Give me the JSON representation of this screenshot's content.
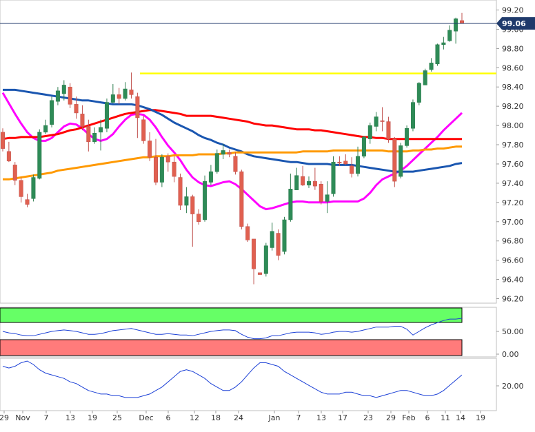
{
  "chart_data": {
    "type": "candlestick",
    "title": "",
    "main_panel": {
      "y_ticks": [
        "99.20",
        "99.00",
        "98.80",
        "98.60",
        "98.40",
        "98.20",
        "98.00",
        "97.80",
        "97.60",
        "97.40",
        "97.20",
        "97.00",
        "96.80",
        "96.60",
        "96.40",
        "96.20"
      ],
      "ylim": [
        96.2,
        99.2
      ],
      "last_price": "99.06",
      "horizontal_level": 98.54,
      "candles": [
        [
          97.93,
          97.97,
          97.73,
          97.76
        ],
        [
          97.73,
          97.83,
          97.62,
          97.63
        ],
        [
          97.59,
          97.62,
          97.38,
          97.43
        ],
        [
          97.43,
          97.46,
          97.2,
          97.26
        ],
        [
          97.23,
          97.29,
          97.15,
          97.18
        ],
        [
          97.24,
          97.49,
          97.21,
          97.46
        ],
        [
          97.45,
          97.96,
          97.44,
          97.93
        ],
        [
          97.93,
          98.06,
          97.91,
          98.0
        ],
        [
          98.01,
          98.3,
          97.98,
          98.26
        ],
        [
          98.25,
          98.4,
          98.21,
          98.36
        ],
        [
          98.33,
          98.47,
          98.26,
          98.42
        ],
        [
          98.4,
          98.44,
          98.18,
          98.22
        ],
        [
          98.22,
          98.3,
          98.07,
          98.13
        ],
        [
          98.12,
          98.21,
          97.95,
          97.99
        ],
        [
          97.99,
          98.06,
          97.73,
          97.83
        ],
        [
          97.83,
          97.98,
          97.81,
          97.92
        ],
        [
          97.93,
          98.06,
          97.74,
          97.98
        ],
        [
          97.97,
          98.28,
          97.93,
          98.24
        ],
        [
          98.24,
          98.43,
          98.23,
          98.32
        ],
        [
          98.32,
          98.39,
          98.22,
          98.28
        ],
        [
          98.28,
          98.45,
          98.26,
          98.38
        ],
        [
          98.37,
          98.55,
          98.28,
          98.32
        ],
        [
          98.3,
          98.34,
          97.87,
          98.08
        ],
        [
          98.06,
          98.1,
          97.81,
          97.84
        ],
        [
          97.84,
          97.93,
          97.63,
          97.67
        ],
        [
          97.67,
          97.86,
          97.38,
          97.41
        ],
        [
          97.41,
          97.7,
          97.36,
          97.67
        ],
        [
          97.68,
          97.71,
          97.52,
          97.62
        ],
        [
          97.62,
          97.68,
          97.41,
          97.47
        ],
        [
          97.46,
          97.5,
          97.12,
          97.17
        ],
        [
          97.17,
          97.36,
          97.09,
          97.26
        ],
        [
          97.26,
          97.28,
          96.74,
          97.08
        ],
        [
          97.08,
          97.13,
          96.97,
          97.0
        ],
        [
          97.02,
          97.48,
          97.0,
          97.42
        ],
        [
          97.41,
          97.59,
          97.38,
          97.52
        ],
        [
          97.52,
          97.75,
          97.5,
          97.71
        ],
        [
          97.7,
          97.81,
          97.65,
          97.74
        ],
        [
          97.72,
          97.75,
          97.67,
          97.7
        ],
        [
          97.68,
          97.72,
          97.49,
          97.52
        ],
        [
          97.52,
          97.54,
          96.92,
          96.95
        ],
        [
          96.95,
          96.98,
          96.79,
          96.81
        ],
        [
          96.82,
          96.82,
          96.35,
          96.51
        ],
        [
          96.47,
          96.47,
          96.45,
          96.45
        ],
        [
          96.46,
          96.78,
          96.43,
          96.75
        ],
        [
          96.73,
          96.99,
          96.7,
          96.9
        ],
        [
          96.88,
          96.92,
          96.6,
          96.65
        ],
        [
          96.69,
          97.05,
          96.66,
          97.02
        ],
        [
          97.02,
          97.5,
          97.0,
          97.34
        ],
        [
          97.33,
          97.56,
          97.33,
          97.48
        ],
        [
          97.47,
          97.58,
          97.37,
          97.38
        ],
        [
          97.38,
          97.47,
          97.35,
          97.42
        ],
        [
          97.42,
          97.56,
          97.33,
          97.37
        ],
        [
          97.39,
          97.42,
          97.18,
          97.21
        ],
        [
          97.21,
          97.42,
          97.09,
          97.28
        ],
        [
          97.29,
          97.68,
          97.26,
          97.62
        ],
        [
          97.62,
          97.68,
          97.58,
          97.61
        ],
        [
          97.63,
          97.7,
          97.59,
          97.6
        ],
        [
          97.58,
          97.67,
          97.46,
          97.5
        ],
        [
          97.5,
          97.78,
          97.47,
          97.68
        ],
        [
          97.68,
          97.89,
          97.66,
          97.88
        ],
        [
          97.86,
          98.03,
          97.81,
          98.0
        ],
        [
          97.99,
          98.14,
          97.94,
          98.09
        ],
        [
          98.05,
          98.19,
          97.94,
          98.04
        ],
        [
          98.04,
          98.09,
          97.82,
          97.86
        ],
        [
          97.86,
          97.88,
          97.36,
          97.42
        ],
        [
          97.47,
          97.82,
          97.45,
          97.79
        ],
        [
          97.79,
          98.0,
          97.77,
          97.97
        ],
        [
          97.97,
          98.27,
          97.94,
          98.24
        ],
        [
          98.24,
          98.45,
          98.21,
          98.44
        ],
        [
          98.42,
          98.59,
          98.42,
          98.57
        ],
        [
          98.58,
          98.7,
          98.56,
          98.65
        ],
        [
          98.64,
          98.85,
          98.62,
          98.84
        ],
        [
          98.84,
          98.92,
          98.79,
          98.86
        ],
        [
          98.88,
          99.04,
          98.87,
          98.99
        ],
        [
          98.98,
          99.12,
          98.85,
          99.11
        ],
        [
          99.09,
          99.17,
          99.06,
          99.06
        ]
      ],
      "moving_averages": [
        {
          "color": "#ff00ff",
          "values": [
            98.34,
            98.23,
            98.12,
            98.02,
            97.93,
            97.87,
            97.84,
            97.84,
            97.87,
            97.93,
            97.99,
            98.02,
            98.01,
            97.97,
            97.91,
            97.86,
            97.84,
            97.86,
            97.91,
            97.99,
            98.06,
            98.11,
            98.12,
            98.11,
            98.06,
            97.98,
            97.88,
            97.79,
            97.72,
            97.64,
            97.54,
            97.46,
            97.41,
            97.38,
            97.37,
            97.39,
            97.41,
            97.42,
            97.39,
            97.34,
            97.28,
            97.22,
            97.16,
            97.13,
            97.14,
            97.16,
            97.18,
            97.2,
            97.21,
            97.21,
            97.2,
            97.2,
            97.2,
            97.2,
            97.21,
            97.21,
            97.21,
            97.21,
            97.21,
            97.24,
            97.3,
            97.38,
            97.44,
            97.47,
            97.5,
            97.53,
            97.58,
            97.64,
            97.7,
            97.76,
            97.82,
            97.88,
            97.95,
            98.01,
            98.07,
            98.13
          ]
        },
        {
          "color": "#ff0000",
          "values": [
            97.86,
            97.87,
            97.87,
            97.88,
            97.88,
            97.88,
            97.88,
            97.89,
            97.9,
            97.91,
            97.93,
            97.95,
            97.96,
            97.98,
            98.0,
            98.02,
            98.04,
            98.06,
            98.08,
            98.1,
            98.12,
            98.13,
            98.14,
            98.15,
            98.16,
            98.16,
            98.15,
            98.14,
            98.13,
            98.12,
            98.1,
            98.1,
            98.1,
            98.1,
            98.1,
            98.09,
            98.08,
            98.07,
            98.06,
            98.05,
            98.04,
            98.02,
            98.01,
            98.0,
            98.0,
            97.99,
            97.98,
            97.97,
            97.96,
            97.96,
            97.96,
            97.95,
            97.95,
            97.94,
            97.93,
            97.92,
            97.91,
            97.9,
            97.89,
            97.88,
            97.88,
            97.87,
            97.87,
            97.86,
            97.86,
            97.86,
            97.86,
            97.86,
            97.86,
            97.86,
            97.86,
            97.86,
            97.86,
            97.86,
            97.86,
            97.86
          ]
        },
        {
          "color": "#1a56b0",
          "values": [
            98.37,
            98.37,
            98.37,
            98.36,
            98.35,
            98.34,
            98.33,
            98.32,
            98.31,
            98.3,
            98.29,
            98.28,
            98.27,
            98.26,
            98.26,
            98.25,
            98.24,
            98.23,
            98.22,
            98.22,
            98.22,
            98.22,
            98.21,
            98.19,
            98.17,
            98.14,
            98.11,
            98.07,
            98.03,
            98.0,
            97.97,
            97.94,
            97.9,
            97.87,
            97.85,
            97.82,
            97.8,
            97.77,
            97.75,
            97.73,
            97.7,
            97.68,
            97.67,
            97.66,
            97.65,
            97.64,
            97.63,
            97.62,
            97.62,
            97.61,
            97.6,
            97.6,
            97.6,
            97.6,
            97.59,
            97.59,
            97.59,
            97.59,
            97.58,
            97.57,
            97.56,
            97.55,
            97.54,
            97.53,
            97.52,
            97.52,
            97.52,
            97.52,
            97.53,
            97.54,
            97.55,
            97.56,
            97.57,
            97.58,
            97.6,
            97.61
          ]
        },
        {
          "color": "#ff9900",
          "values": [
            97.44,
            97.44,
            97.45,
            97.46,
            97.47,
            97.48,
            97.49,
            97.5,
            97.51,
            97.53,
            97.54,
            97.55,
            97.56,
            97.57,
            97.58,
            97.59,
            97.6,
            97.61,
            97.62,
            97.63,
            97.64,
            97.65,
            97.66,
            97.67,
            97.67,
            97.68,
            97.68,
            97.68,
            97.69,
            97.69,
            97.69,
            97.69,
            97.7,
            97.7,
            97.7,
            97.7,
            97.71,
            97.71,
            97.72,
            97.72,
            97.72,
            97.72,
            97.72,
            97.72,
            97.72,
            97.72,
            97.72,
            97.72,
            97.72,
            97.73,
            97.73,
            97.73,
            97.73,
            97.73,
            97.74,
            97.74,
            97.74,
            97.74,
            97.74,
            97.74,
            97.74,
            97.74,
            97.74,
            97.73,
            97.73,
            97.73,
            97.73,
            97.74,
            97.74,
            97.75,
            97.75,
            97.76,
            97.76,
            97.77,
            97.78,
            97.78
          ]
        }
      ]
    },
    "rsi_panel": {
      "y_ticks": [
        "50.00",
        "0.00"
      ],
      "ylim": [
        0,
        100
      ],
      "overbought": 70,
      "oversold": 30,
      "values": [
        50,
        48,
        47,
        45,
        44,
        44,
        46,
        48,
        50,
        51,
        52,
        51,
        50,
        48,
        46,
        46,
        47,
        49,
        51,
        52,
        53,
        54,
        52,
        50,
        48,
        46,
        46,
        47,
        46,
        45,
        45,
        44,
        46,
        48,
        50,
        51,
        52,
        52,
        51,
        46,
        42,
        40,
        40,
        41,
        44,
        44,
        46,
        48,
        49,
        49,
        49,
        48,
        46,
        47,
        49,
        50,
        50,
        49,
        50,
        52,
        54,
        56,
        56,
        56,
        57,
        57,
        53,
        45,
        50,
        55,
        59,
        62,
        65,
        67,
        67,
        68
      ]
    },
    "osc_panel": {
      "y_ticks": [
        "20.00"
      ],
      "ylim": [
        0,
        30
      ],
      "values": [
        24,
        23,
        24,
        26,
        27,
        25,
        22,
        20,
        19,
        18,
        17,
        15,
        14,
        12,
        10,
        9,
        8,
        8,
        7,
        7,
        6,
        6,
        6,
        7,
        8,
        10,
        12,
        15,
        18,
        21,
        22,
        21,
        19,
        17,
        14,
        12,
        10,
        10,
        12,
        15,
        19,
        23,
        26,
        26,
        25,
        24,
        21,
        19,
        17,
        15,
        13,
        11,
        9,
        8,
        8,
        8,
        9,
        9,
        8,
        7,
        7,
        6,
        7,
        8,
        9,
        10,
        10,
        9,
        8,
        7,
        7,
        8,
        10,
        13,
        16,
        19
      ]
    },
    "x_labels": [
      "29",
      "Nov",
      "7",
      "13",
      "19",
      "25",
      "Dec",
      "6",
      "12",
      "18",
      "24",
      "Jan",
      "7",
      "13",
      "17",
      "23",
      "29",
      "Feb",
      "6",
      "11",
      "14",
      "19"
    ]
  }
}
